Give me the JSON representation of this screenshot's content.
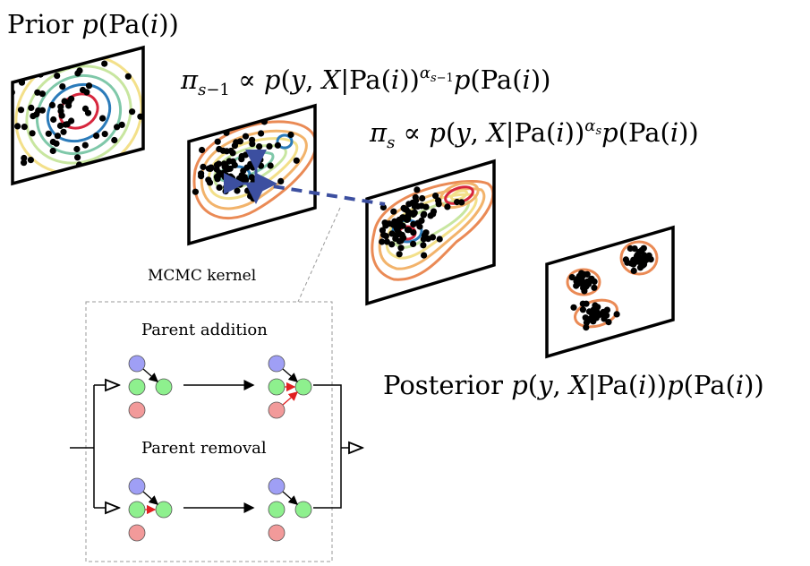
{
  "labels": {
    "prior": "Prior p(Pa(i))",
    "pi_prev": "π_{s−1} ∝ p(y, X|Pa(i))^{α_{s−1}} p(Pa(i))",
    "pi_s": "π_s ∝ p(y, X|Pa(i))^{α_s} p(Pa(i))",
    "posterior": "Posterior p(y, X|Pa(i))p(Pa(i))",
    "mcmc_kernel": "MCMC kernel",
    "parent_addition": "Parent addition",
    "parent_removal": "Parent removal"
  },
  "colors": {
    "blue_node": "#9f9ff5",
    "green_node": "#8ef08e",
    "red_node": "#f29a9a",
    "dashed_arrow": "#3c4fa0",
    "contours": [
      "#d7263d",
      "#2b7bba",
      "#7fc8a9",
      "#c8e6a0",
      "#f3e08a",
      "#f2b36b",
      "#ea8a55"
    ]
  }
}
